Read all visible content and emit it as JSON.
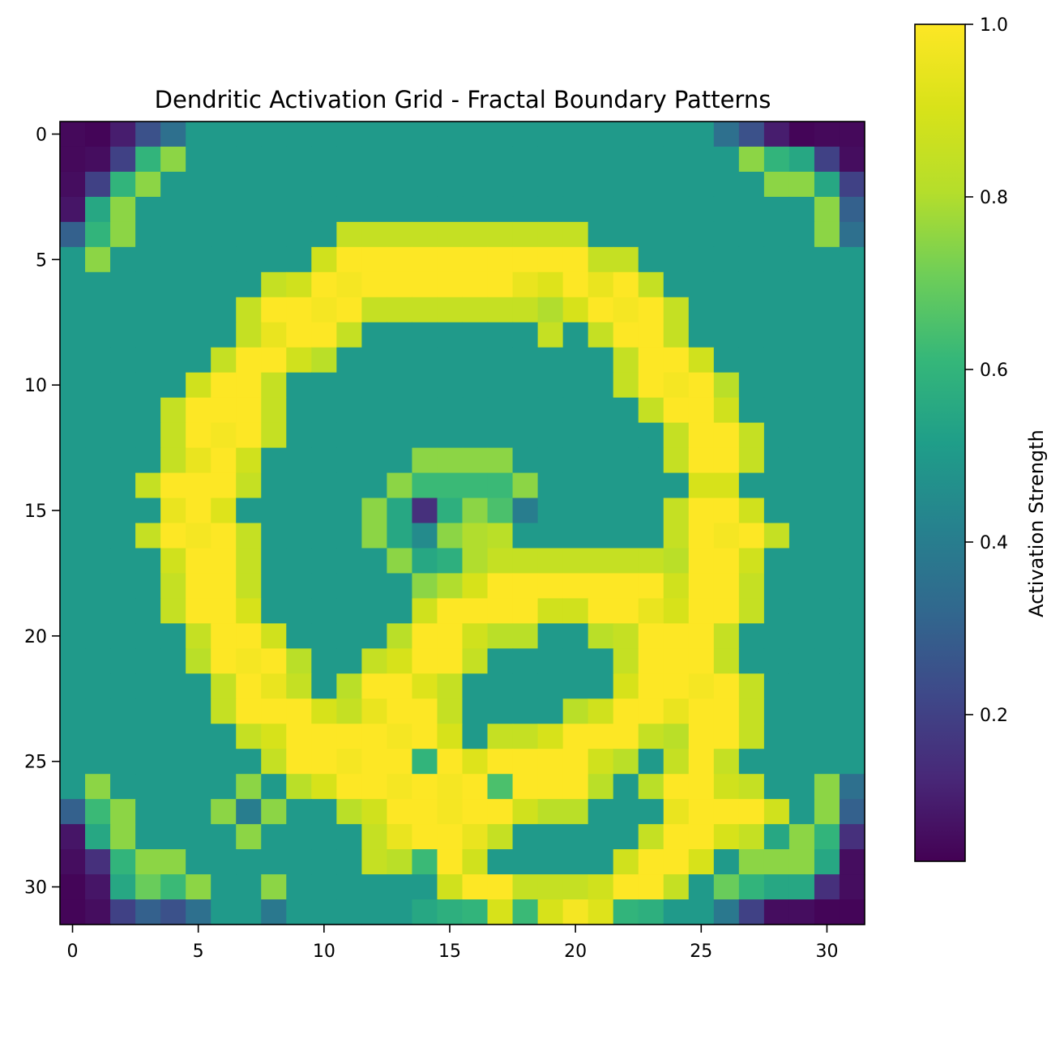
{
  "chart_data": {
    "type": "heatmap",
    "title": "Dendritic Activation Grid - Fractal Boundary Patterns",
    "xlabel": "",
    "ylabel": "",
    "xlim": [
      -0.5,
      31.5
    ],
    "ylim": [
      31.5,
      -0.5
    ],
    "x_ticks": [
      0,
      5,
      10,
      15,
      20,
      25,
      30
    ],
    "y_ticks": [
      0,
      5,
      10,
      15,
      20,
      25,
      30
    ],
    "colormap": "viridis",
    "colorbar": {
      "label": "Activation Strength",
      "range": [
        0.03,
        1.0
      ],
      "ticks": [
        0.2,
        0.4,
        0.6,
        0.8,
        1.0
      ],
      "tick_labels": [
        "0.2",
        "0.4",
        "0.6",
        "0.8",
        "1.0"
      ]
    },
    "grid": false,
    "rows": 32,
    "cols": 32,
    "values": [
      [
        0.05,
        0.04,
        0.1,
        0.25,
        0.35,
        0.5,
        0.5,
        0.5,
        0.5,
        0.5,
        0.5,
        0.5,
        0.5,
        0.5,
        0.5,
        0.5,
        0.5,
        0.5,
        0.5,
        0.5,
        0.5,
        0.5,
        0.5,
        0.5,
        0.5,
        0.5,
        0.35,
        0.25,
        0.1,
        0.04,
        0.05,
        0.05
      ],
      [
        0.05,
        0.06,
        0.2,
        0.6,
        0.75,
        0.5,
        0.5,
        0.5,
        0.5,
        0.5,
        0.5,
        0.5,
        0.5,
        0.5,
        0.5,
        0.5,
        0.5,
        0.5,
        0.5,
        0.5,
        0.5,
        0.5,
        0.5,
        0.5,
        0.5,
        0.5,
        0.5,
        0.75,
        0.6,
        0.55,
        0.2,
        0.06
      ],
      [
        0.06,
        0.2,
        0.6,
        0.75,
        0.5,
        0.5,
        0.5,
        0.5,
        0.5,
        0.5,
        0.5,
        0.5,
        0.5,
        0.5,
        0.5,
        0.5,
        0.5,
        0.5,
        0.5,
        0.5,
        0.5,
        0.5,
        0.5,
        0.5,
        0.5,
        0.5,
        0.5,
        0.5,
        0.75,
        0.75,
        0.55,
        0.2
      ],
      [
        0.08,
        0.55,
        0.75,
        0.5,
        0.5,
        0.5,
        0.5,
        0.5,
        0.5,
        0.5,
        0.5,
        0.5,
        0.5,
        0.5,
        0.5,
        0.5,
        0.5,
        0.5,
        0.5,
        0.5,
        0.5,
        0.5,
        0.5,
        0.5,
        0.5,
        0.5,
        0.5,
        0.5,
        0.5,
        0.5,
        0.75,
        0.3
      ],
      [
        0.3,
        0.6,
        0.75,
        0.5,
        0.5,
        0.5,
        0.5,
        0.5,
        0.5,
        0.5,
        0.5,
        0.85,
        0.85,
        0.85,
        0.85,
        0.85,
        0.85,
        0.85,
        0.85,
        0.85,
        0.85,
        0.5,
        0.5,
        0.5,
        0.5,
        0.5,
        0.5,
        0.5,
        0.5,
        0.5,
        0.75,
        0.35
      ],
      [
        0.5,
        0.75,
        0.5,
        0.5,
        0.5,
        0.5,
        0.5,
        0.5,
        0.5,
        0.5,
        0.88,
        1.0,
        1.0,
        1.0,
        1.0,
        1.0,
        1.0,
        1.0,
        1.0,
        1.0,
        1.0,
        0.85,
        0.85,
        0.5,
        0.5,
        0.5,
        0.5,
        0.5,
        0.5,
        0.5,
        0.5,
        0.5
      ],
      [
        0.5,
        0.5,
        0.5,
        0.5,
        0.5,
        0.5,
        0.5,
        0.5,
        0.85,
        0.88,
        1.0,
        0.98,
        1.0,
        1.0,
        1.0,
        1.0,
        1.0,
        1.0,
        0.95,
        0.92,
        1.0,
        0.95,
        1.0,
        0.85,
        0.5,
        0.5,
        0.5,
        0.5,
        0.5,
        0.5,
        0.5,
        0.5
      ],
      [
        0.5,
        0.5,
        0.5,
        0.5,
        0.5,
        0.5,
        0.5,
        0.85,
        1.0,
        1.0,
        0.98,
        1.0,
        0.85,
        0.85,
        0.85,
        0.85,
        0.85,
        0.85,
        0.85,
        0.8,
        0.9,
        1.0,
        0.98,
        1.0,
        0.85,
        0.5,
        0.5,
        0.5,
        0.5,
        0.5,
        0.5,
        0.5
      ],
      [
        0.5,
        0.5,
        0.5,
        0.5,
        0.5,
        0.5,
        0.5,
        0.85,
        0.95,
        1.0,
        1.0,
        0.85,
        0.5,
        0.5,
        0.5,
        0.5,
        0.5,
        0.5,
        0.5,
        0.85,
        0.5,
        0.85,
        1.0,
        1.0,
        0.85,
        0.5,
        0.5,
        0.5,
        0.5,
        0.5,
        0.5,
        0.5
      ],
      [
        0.5,
        0.5,
        0.5,
        0.5,
        0.5,
        0.5,
        0.85,
        1.0,
        1.0,
        0.88,
        0.82,
        0.5,
        0.5,
        0.5,
        0.5,
        0.5,
        0.5,
        0.5,
        0.5,
        0.5,
        0.5,
        0.5,
        0.85,
        1.0,
        1.0,
        0.88,
        0.5,
        0.5,
        0.5,
        0.5,
        0.5,
        0.5
      ],
      [
        0.5,
        0.5,
        0.5,
        0.5,
        0.5,
        0.88,
        1.0,
        1.0,
        0.85,
        0.5,
        0.5,
        0.5,
        0.5,
        0.5,
        0.5,
        0.5,
        0.5,
        0.5,
        0.5,
        0.5,
        0.5,
        0.5,
        0.85,
        1.0,
        0.98,
        1.0,
        0.82,
        0.5,
        0.5,
        0.5,
        0.5,
        0.5
      ],
      [
        0.5,
        0.5,
        0.5,
        0.5,
        0.85,
        1.0,
        1.0,
        1.0,
        0.85,
        0.5,
        0.5,
        0.5,
        0.5,
        0.5,
        0.5,
        0.5,
        0.5,
        0.5,
        0.5,
        0.5,
        0.5,
        0.5,
        0.5,
        0.85,
        1.0,
        1.0,
        0.88,
        0.5,
        0.5,
        0.5,
        0.5,
        0.5
      ],
      [
        0.5,
        0.5,
        0.5,
        0.5,
        0.85,
        1.0,
        0.98,
        1.0,
        0.85,
        0.5,
        0.5,
        0.5,
        0.5,
        0.5,
        0.5,
        0.5,
        0.5,
        0.5,
        0.5,
        0.5,
        0.5,
        0.5,
        0.5,
        0.5,
        0.85,
        1.0,
        1.0,
        0.85,
        0.5,
        0.5,
        0.5,
        0.5
      ],
      [
        0.5,
        0.5,
        0.5,
        0.5,
        0.85,
        0.95,
        1.0,
        0.88,
        0.5,
        0.5,
        0.5,
        0.5,
        0.5,
        0.5,
        0.75,
        0.75,
        0.75,
        0.75,
        0.5,
        0.5,
        0.5,
        0.5,
        0.5,
        0.5,
        0.85,
        1.0,
        1.0,
        0.85,
        0.5,
        0.5,
        0.5,
        0.5
      ],
      [
        0.5,
        0.5,
        0.5,
        0.85,
        1.0,
        1.0,
        1.0,
        0.85,
        0.5,
        0.5,
        0.5,
        0.5,
        0.5,
        0.75,
        0.62,
        0.62,
        0.62,
        0.62,
        0.75,
        0.5,
        0.5,
        0.5,
        0.5,
        0.5,
        0.5,
        0.9,
        0.9,
        0.5,
        0.5,
        0.5,
        0.5,
        0.5
      ],
      [
        0.5,
        0.5,
        0.5,
        0.5,
        0.95,
        1.0,
        0.92,
        0.5,
        0.5,
        0.5,
        0.5,
        0.5,
        0.75,
        0.55,
        0.15,
        0.58,
        0.75,
        0.65,
        0.4,
        0.5,
        0.5,
        0.5,
        0.5,
        0.5,
        0.85,
        1.0,
        1.0,
        0.88,
        0.5,
        0.5,
        0.5,
        0.5
      ],
      [
        0.5,
        0.5,
        0.5,
        0.85,
        1.0,
        0.98,
        1.0,
        0.85,
        0.5,
        0.5,
        0.5,
        0.5,
        0.75,
        0.55,
        0.45,
        0.75,
        0.8,
        0.82,
        0.5,
        0.5,
        0.5,
        0.5,
        0.5,
        0.5,
        0.85,
        1.0,
        0.98,
        1.0,
        0.85,
        0.5,
        0.5,
        0.5
      ],
      [
        0.5,
        0.5,
        0.5,
        0.5,
        0.88,
        1.0,
        1.0,
        0.85,
        0.5,
        0.5,
        0.5,
        0.5,
        0.5,
        0.75,
        0.55,
        0.58,
        0.8,
        0.85,
        0.85,
        0.85,
        0.85,
        0.85,
        0.85,
        0.85,
        0.82,
        1.0,
        1.0,
        0.88,
        0.5,
        0.5,
        0.5,
        0.5
      ],
      [
        0.5,
        0.5,
        0.5,
        0.5,
        0.85,
        1.0,
        1.0,
        0.85,
        0.5,
        0.5,
        0.5,
        0.5,
        0.5,
        0.5,
        0.75,
        0.8,
        0.9,
        1.0,
        1.0,
        1.0,
        1.0,
        1.0,
        1.0,
        1.0,
        0.88,
        1.0,
        1.0,
        0.85,
        0.5,
        0.5,
        0.5,
        0.5
      ],
      [
        0.5,
        0.5,
        0.5,
        0.5,
        0.85,
        1.0,
        1.0,
        0.9,
        0.5,
        0.5,
        0.5,
        0.5,
        0.5,
        0.5,
        0.88,
        1.0,
        1.0,
        1.0,
        1.0,
        0.88,
        0.88,
        1.0,
        1.0,
        0.95,
        0.9,
        1.0,
        1.0,
        0.85,
        0.5,
        0.5,
        0.5,
        0.5
      ],
      [
        0.5,
        0.5,
        0.5,
        0.5,
        0.5,
        0.85,
        1.0,
        1.0,
        0.88,
        0.5,
        0.5,
        0.5,
        0.5,
        0.82,
        1.0,
        1.0,
        0.88,
        0.82,
        0.82,
        0.5,
        0.5,
        0.82,
        0.85,
        1.0,
        1.0,
        1.0,
        0.85,
        0.5,
        0.5,
        0.5,
        0.5,
        0.5
      ],
      [
        0.5,
        0.5,
        0.5,
        0.5,
        0.5,
        0.82,
        1.0,
        0.98,
        1.0,
        0.82,
        0.5,
        0.5,
        0.85,
        0.9,
        1.0,
        1.0,
        0.85,
        0.5,
        0.5,
        0.5,
        0.5,
        0.5,
        0.85,
        1.0,
        1.0,
        1.0,
        0.85,
        0.5,
        0.5,
        0.5,
        0.5,
        0.5
      ],
      [
        0.5,
        0.5,
        0.5,
        0.5,
        0.5,
        0.5,
        0.85,
        1.0,
        0.95,
        0.85,
        0.5,
        0.82,
        1.0,
        1.0,
        0.92,
        0.85,
        0.5,
        0.5,
        0.5,
        0.5,
        0.5,
        0.5,
        0.9,
        1.0,
        1.0,
        0.98,
        1.0,
        0.85,
        0.5,
        0.5,
        0.5,
        0.5
      ],
      [
        0.5,
        0.5,
        0.5,
        0.5,
        0.5,
        0.5,
        0.85,
        1.0,
        1.0,
        1.0,
        0.9,
        0.85,
        0.95,
        1.0,
        1.0,
        0.85,
        0.5,
        0.5,
        0.5,
        0.5,
        0.82,
        0.88,
        1.0,
        1.0,
        0.95,
        1.0,
        1.0,
        0.85,
        0.5,
        0.5,
        0.5,
        0.5
      ],
      [
        0.5,
        0.5,
        0.5,
        0.5,
        0.5,
        0.5,
        0.5,
        0.85,
        0.9,
        1.0,
        1.0,
        1.0,
        1.0,
        0.98,
        1.0,
        0.9,
        0.5,
        0.85,
        0.85,
        0.9,
        1.0,
        1.0,
        1.0,
        0.85,
        0.82,
        1.0,
        1.0,
        0.85,
        0.5,
        0.5,
        0.5,
        0.5
      ],
      [
        0.5,
        0.5,
        0.5,
        0.5,
        0.5,
        0.5,
        0.5,
        0.5,
        0.85,
        1.0,
        1.0,
        0.98,
        1.0,
        1.0,
        0.6,
        1.0,
        0.92,
        1.0,
        1.0,
        1.0,
        1.0,
        0.88,
        0.82,
        0.5,
        0.85,
        1.0,
        0.85,
        0.5,
        0.5,
        0.5,
        0.5,
        0.5
      ],
      [
        0.5,
        0.75,
        0.5,
        0.5,
        0.5,
        0.5,
        0.5,
        0.75,
        0.5,
        0.82,
        0.9,
        1.0,
        1.0,
        0.98,
        1.0,
        0.98,
        1.0,
        0.65,
        1.0,
        1.0,
        1.0,
        0.82,
        0.5,
        0.82,
        1.0,
        1.0,
        0.88,
        0.85,
        0.5,
        0.5,
        0.75,
        0.35
      ],
      [
        0.3,
        0.62,
        0.75,
        0.5,
        0.5,
        0.5,
        0.75,
        0.4,
        0.75,
        0.5,
        0.5,
        0.82,
        0.88,
        1.0,
        1.0,
        0.98,
        1.0,
        1.0,
        0.88,
        0.82,
        0.82,
        0.5,
        0.5,
        0.5,
        0.95,
        1.0,
        1.0,
        1.0,
        0.88,
        0.5,
        0.75,
        0.3
      ],
      [
        0.08,
        0.55,
        0.75,
        0.5,
        0.5,
        0.5,
        0.5,
        0.75,
        0.5,
        0.5,
        0.5,
        0.5,
        0.85,
        0.95,
        1.0,
        1.0,
        0.95,
        0.85,
        0.5,
        0.5,
        0.5,
        0.5,
        0.5,
        0.85,
        1.0,
        1.0,
        0.9,
        0.85,
        0.55,
        0.75,
        0.6,
        0.15
      ],
      [
        0.06,
        0.15,
        0.6,
        0.75,
        0.75,
        0.5,
        0.5,
        0.5,
        0.5,
        0.5,
        0.5,
        0.5,
        0.85,
        0.82,
        0.62,
        1.0,
        0.88,
        0.5,
        0.5,
        0.5,
        0.5,
        0.5,
        0.88,
        1.0,
        1.0,
        0.9,
        0.5,
        0.75,
        0.75,
        0.75,
        0.55,
        0.06
      ],
      [
        0.04,
        0.08,
        0.55,
        0.7,
        0.62,
        0.75,
        0.5,
        0.5,
        0.75,
        0.5,
        0.5,
        0.5,
        0.5,
        0.5,
        0.5,
        0.88,
        1.0,
        1.0,
        0.85,
        0.85,
        0.85,
        0.88,
        1.0,
        1.0,
        0.85,
        0.5,
        0.7,
        0.6,
        0.55,
        0.55,
        0.15,
        0.06
      ],
      [
        0.04,
        0.06,
        0.2,
        0.3,
        0.25,
        0.35,
        0.5,
        0.5,
        0.38,
        0.5,
        0.5,
        0.5,
        0.5,
        0.5,
        0.55,
        0.58,
        0.6,
        0.9,
        0.62,
        0.9,
        0.98,
        0.92,
        0.6,
        0.58,
        0.5,
        0.5,
        0.38,
        0.2,
        0.06,
        0.06,
        0.04,
        0.04
      ]
    ]
  }
}
